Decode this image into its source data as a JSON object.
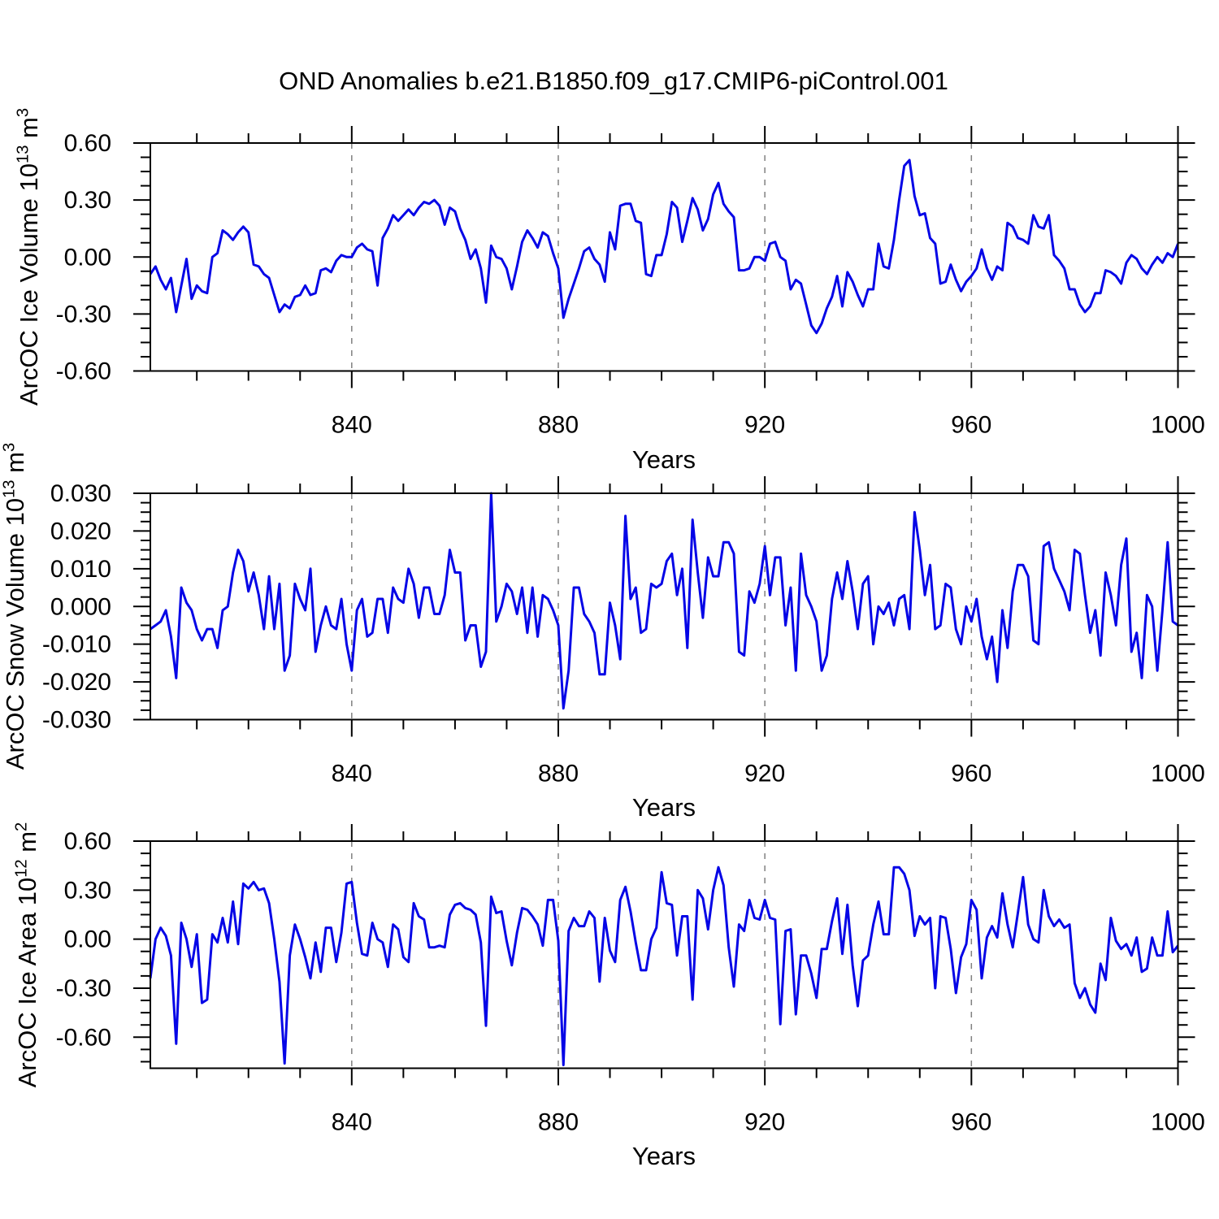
{
  "chart_data": {
    "type": "line",
    "title": "OND Anomalies b.e21.B1850.f09_g17.CMIP6-piControl.001",
    "xlabel": "Years",
    "line_color": "#0505E6",
    "grid_color": "#808080",
    "axis_color": "#000000",
    "legend": "none",
    "grid": "vertical-dashed",
    "xlim": [
      801,
      1000
    ],
    "xticks": [
      840,
      880,
      920,
      960,
      1000
    ],
    "xtick_labels": [
      "840",
      "880",
      "920",
      "960",
      "1000"
    ],
    "x_minor_step": 10,
    "grid_x": [
      840,
      880,
      920,
      960
    ],
    "years": [
      801,
      802,
      803,
      804,
      805,
      806,
      807,
      808,
      809,
      810,
      811,
      812,
      813,
      814,
      815,
      816,
      817,
      818,
      819,
      820,
      821,
      822,
      823,
      824,
      825,
      826,
      827,
      828,
      829,
      830,
      831,
      832,
      833,
      834,
      835,
      836,
      837,
      838,
      839,
      840,
      841,
      842,
      843,
      844,
      845,
      846,
      847,
      848,
      849,
      850,
      851,
      852,
      853,
      854,
      855,
      856,
      857,
      858,
      859,
      860,
      861,
      862,
      863,
      864,
      865,
      866,
      867,
      868,
      869,
      870,
      871,
      872,
      873,
      874,
      875,
      876,
      877,
      878,
      879,
      880,
      881,
      882,
      883,
      884,
      885,
      886,
      887,
      888,
      889,
      890,
      891,
      892,
      893,
      894,
      895,
      896,
      897,
      898,
      899,
      900,
      901,
      902,
      903,
      904,
      905,
      906,
      907,
      908,
      909,
      910,
      911,
      912,
      913,
      914,
      915,
      916,
      917,
      918,
      919,
      920,
      921,
      922,
      923,
      924,
      925,
      926,
      927,
      928,
      929,
      930,
      931,
      932,
      933,
      934,
      935,
      936,
      937,
      938,
      939,
      940,
      941,
      942,
      943,
      944,
      945,
      946,
      947,
      948,
      949,
      950,
      951,
      952,
      953,
      954,
      955,
      956,
      957,
      958,
      959,
      960,
      961,
      962,
      963,
      964,
      965,
      966,
      967,
      968,
      969,
      970,
      971,
      972,
      973,
      974,
      975,
      976,
      977,
      978,
      979,
      980,
      981,
      982,
      983,
      984,
      985,
      986,
      987,
      988,
      989,
      990,
      991,
      992,
      993,
      994,
      995,
      996,
      997,
      998,
      999,
      1000
    ],
    "charts": [
      {
        "name": "arcoc-ice-volume",
        "ylabel_prefix": "ArcOC Ice Volume 10",
        "ylabel_exp": "13",
        "ylabel_unit": " m",
        "ylabel_unit_exp": "3",
        "xlabel": "Years",
        "ylim": [
          -0.6,
          0.6
        ],
        "yticks": [
          0.6,
          0.3,
          0.0,
          -0.3,
          -0.6
        ],
        "ytick_labels": [
          "0.60",
          "0.30",
          "0.00",
          "-0.30",
          "-0.60"
        ],
        "y_minor_step": 0.075,
        "values": [
          -0.09,
          -0.05,
          -0.12,
          -0.17,
          -0.11,
          -0.29,
          -0.15,
          -0.01,
          -0.22,
          -0.15,
          -0.18,
          -0.19,
          0.0,
          0.02,
          0.14,
          0.12,
          0.09,
          0.13,
          0.16,
          0.13,
          -0.04,
          -0.05,
          -0.09,
          -0.11,
          -0.2,
          -0.29,
          -0.25,
          -0.27,
          -0.21,
          -0.2,
          -0.15,
          -0.2,
          -0.19,
          -0.07,
          -0.06,
          -0.08,
          -0.02,
          0.01,
          0.0,
          0.0,
          0.05,
          0.07,
          0.04,
          0.03,
          -0.15,
          0.1,
          0.15,
          0.22,
          0.19,
          0.22,
          0.25,
          0.22,
          0.26,
          0.29,
          0.28,
          0.3,
          0.27,
          0.17,
          0.26,
          0.24,
          0.15,
          0.09,
          -0.01,
          0.04,
          -0.06,
          -0.24,
          0.06,
          0.0,
          -0.01,
          -0.06,
          -0.17,
          -0.05,
          0.08,
          0.14,
          0.1,
          0.05,
          0.13,
          0.11,
          0.02,
          -0.06,
          -0.32,
          -0.22,
          -0.14,
          -0.06,
          0.03,
          0.05,
          -0.01,
          -0.04,
          -0.13,
          0.13,
          0.04,
          0.27,
          0.28,
          0.28,
          0.19,
          0.18,
          -0.09,
          -0.1,
          0.01,
          0.01,
          0.12,
          0.29,
          0.26,
          0.08,
          0.19,
          0.31,
          0.25,
          0.14,
          0.2,
          0.33,
          0.39,
          0.28,
          0.24,
          0.21,
          -0.07,
          -0.07,
          -0.06,
          0.0,
          0.0,
          -0.02,
          0.07,
          0.08,
          0.0,
          -0.02,
          -0.17,
          -0.12,
          -0.14,
          -0.25,
          -0.36,
          -0.4,
          -0.35,
          -0.27,
          -0.21,
          -0.1,
          -0.26,
          -0.08,
          -0.13,
          -0.2,
          -0.26,
          -0.17,
          -0.17,
          0.07,
          -0.05,
          -0.06,
          0.09,
          0.3,
          0.48,
          0.51,
          0.32,
          0.22,
          0.23,
          0.1,
          0.07,
          -0.14,
          -0.13,
          -0.04,
          -0.12,
          -0.18,
          -0.13,
          -0.1,
          -0.06,
          0.04,
          -0.06,
          -0.12,
          -0.05,
          -0.07,
          0.18,
          0.16,
          0.1,
          0.09,
          0.07,
          0.22,
          0.16,
          0.15,
          0.22,
          0.01,
          -0.02,
          -0.06,
          -0.17,
          -0.17,
          -0.25,
          -0.29,
          -0.26,
          -0.19,
          -0.19,
          -0.07,
          -0.08,
          -0.1,
          -0.14,
          -0.03,
          0.01,
          -0.01,
          -0.06,
          -0.09,
          -0.04,
          0.0,
          -0.03,
          0.02,
          0.0,
          0.07
        ]
      },
      {
        "name": "arcoc-snow-volume",
        "ylabel_prefix": "ArcOC Snow Volume 10",
        "ylabel_exp": "13",
        "ylabel_unit": " m",
        "ylabel_unit_exp": "3",
        "xlabel": "Years",
        "ylim": [
          -0.03,
          0.03
        ],
        "yticks": [
          0.03,
          0.02,
          0.01,
          0.0,
          -0.01,
          -0.02,
          -0.03
        ],
        "ytick_labels": [
          "0.030",
          "0.020",
          "0.010",
          "0.000",
          "-0.010",
          "-0.020",
          "-0.030"
        ],
        "y_minor_step": 0.0025,
        "values": [
          -0.006,
          -0.005,
          -0.004,
          -0.001,
          -0.008,
          -0.019,
          0.005,
          0.001,
          -0.001,
          -0.006,
          -0.009,
          -0.006,
          -0.006,
          -0.011,
          -0.001,
          0.0,
          0.009,
          0.015,
          0.012,
          0.004,
          0.009,
          0.003,
          -0.006,
          0.008,
          -0.006,
          0.006,
          -0.017,
          -0.013,
          0.006,
          0.002,
          -0.001,
          0.01,
          -0.012,
          -0.005,
          0.0,
          -0.005,
          -0.006,
          0.002,
          -0.01,
          -0.017,
          -0.001,
          0.002,
          -0.008,
          -0.007,
          0.002,
          0.002,
          -0.007,
          0.005,
          0.002,
          0.001,
          0.01,
          0.006,
          -0.003,
          0.005,
          0.005,
          -0.002,
          -0.002,
          0.003,
          0.015,
          0.009,
          0.009,
          -0.009,
          -0.005,
          -0.005,
          -0.016,
          -0.012,
          0.03,
          -0.004,
          0.0,
          0.006,
          0.004,
          -0.002,
          0.005,
          -0.007,
          0.005,
          -0.008,
          0.003,
          0.002,
          -0.001,
          -0.005,
          -0.027,
          -0.017,
          0.005,
          0.005,
          -0.002,
          -0.004,
          -0.007,
          -0.018,
          -0.018,
          0.001,
          -0.005,
          -0.014,
          0.024,
          0.002,
          0.005,
          -0.007,
          -0.006,
          0.006,
          0.005,
          0.006,
          0.012,
          0.014,
          0.003,
          0.01,
          -0.011,
          0.023,
          0.009,
          -0.003,
          0.013,
          0.008,
          0.008,
          0.017,
          0.017,
          0.014,
          -0.012,
          -0.013,
          0.004,
          0.001,
          0.006,
          0.016,
          0.003,
          0.013,
          0.013,
          -0.005,
          0.005,
          -0.017,
          0.014,
          0.003,
          0.0,
          -0.004,
          -0.017,
          -0.013,
          0.002,
          0.009,
          0.002,
          0.012,
          0.004,
          -0.006,
          0.006,
          0.008,
          -0.01,
          0.0,
          -0.002,
          0.001,
          -0.005,
          0.002,
          0.003,
          -0.006,
          0.025,
          0.015,
          0.003,
          0.011,
          -0.006,
          -0.005,
          0.006,
          0.005,
          -0.006,
          -0.01,
          0.0,
          -0.004,
          0.002,
          -0.008,
          -0.014,
          -0.008,
          -0.02,
          -0.001,
          -0.011,
          0.004,
          0.011,
          0.011,
          0.008,
          -0.009,
          -0.01,
          0.016,
          0.017,
          0.01,
          0.007,
          0.004,
          -0.001,
          0.015,
          0.014,
          0.003,
          -0.007,
          -0.001,
          -0.013,
          0.009,
          0.003,
          -0.005,
          0.011,
          0.018,
          -0.012,
          -0.007,
          -0.019,
          0.003,
          0.0,
          -0.017,
          -0.001,
          0.017,
          -0.004,
          -0.005
        ]
      },
      {
        "name": "arcoc-ice-area",
        "ylabel_prefix": "ArcOC Ice Area 10",
        "ylabel_exp": "12",
        "ylabel_unit": " m",
        "ylabel_unit_exp": "2",
        "xlabel": "Years",
        "ylim": [
          -0.79,
          0.6
        ],
        "yticks": [
          0.6,
          0.3,
          0.0,
          -0.3,
          -0.6
        ],
        "ytick_labels": [
          "0.60",
          "0.30",
          "0.00",
          "-0.30",
          "-0.60"
        ],
        "y_minor_step": 0.075,
        "values": [
          -0.24,
          0.0,
          0.07,
          0.02,
          -0.1,
          -0.64,
          0.1,
          0.0,
          -0.17,
          0.03,
          -0.39,
          -0.37,
          0.03,
          -0.02,
          0.13,
          -0.02,
          0.23,
          -0.03,
          0.34,
          0.31,
          0.35,
          0.3,
          0.31,
          0.22,
          0.0,
          -0.26,
          -0.76,
          -0.1,
          0.09,
          0.0,
          -0.11,
          -0.24,
          -0.02,
          -0.2,
          0.07,
          0.07,
          -0.14,
          0.04,
          0.34,
          0.35,
          0.1,
          -0.09,
          -0.1,
          0.1,
          0.0,
          -0.02,
          -0.17,
          0.09,
          0.06,
          -0.11,
          -0.14,
          0.22,
          0.14,
          0.12,
          -0.05,
          -0.05,
          -0.04,
          -0.05,
          0.15,
          0.21,
          0.22,
          0.19,
          0.18,
          0.15,
          -0.02,
          -0.53,
          0.26,
          0.16,
          0.17,
          -0.01,
          -0.16,
          0.04,
          0.19,
          0.18,
          0.14,
          0.09,
          -0.04,
          0.24,
          0.24,
          -0.01,
          -0.77,
          0.05,
          0.13,
          0.08,
          0.08,
          0.17,
          0.13,
          -0.26,
          0.13,
          -0.07,
          -0.14,
          0.24,
          0.32,
          0.17,
          -0.02,
          -0.19,
          -0.19,
          0.0,
          0.07,
          0.41,
          0.22,
          0.21,
          -0.1,
          0.14,
          0.14,
          -0.37,
          0.3,
          0.25,
          0.06,
          0.3,
          0.44,
          0.33,
          -0.05,
          -0.29,
          0.09,
          0.05,
          0.24,
          0.13,
          0.12,
          0.24,
          0.13,
          0.12,
          -0.52,
          0.05,
          0.06,
          -0.46,
          -0.1,
          -0.1,
          -0.21,
          -0.36,
          -0.06,
          -0.06,
          0.11,
          0.25,
          -0.09,
          0.21,
          -0.16,
          -0.41,
          -0.13,
          -0.1,
          0.09,
          0.23,
          0.03,
          0.03,
          0.44,
          0.44,
          0.4,
          0.3,
          0.02,
          0.14,
          0.09,
          0.13,
          -0.3,
          0.14,
          0.13,
          -0.06,
          -0.33,
          -0.11,
          -0.03,
          0.24,
          0.18,
          -0.24,
          0.01,
          0.08,
          0.01,
          0.28,
          0.09,
          -0.05,
          0.16,
          0.38,
          0.09,
          0.0,
          -0.02,
          0.3,
          0.14,
          0.08,
          0.12,
          0.07,
          0.09,
          -0.27,
          -0.36,
          -0.3,
          -0.4,
          -0.45,
          -0.15,
          -0.25,
          0.13,
          -0.01,
          -0.06,
          -0.03,
          -0.1,
          0.01,
          -0.2,
          -0.18,
          0.01,
          -0.1,
          -0.1,
          0.17,
          -0.08,
          -0.04
        ]
      }
    ]
  }
}
